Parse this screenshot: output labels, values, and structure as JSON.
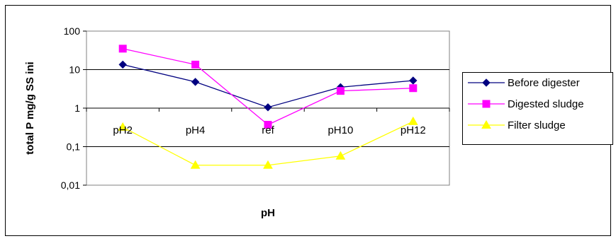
{
  "chart_data": {
    "type": "line",
    "y_scale": "log",
    "ylabel": "total P mg/g SS ini",
    "xlabel": "pH",
    "categories": [
      "pH2",
      "pH4",
      "ref",
      "pH10",
      "pH12"
    ],
    "ylim": [
      0.01,
      100
    ],
    "yticks": [
      100,
      10,
      1,
      0.1,
      0.01
    ],
    "ytick_labels": [
      "100",
      "10",
      "1",
      "0,1",
      "0,01"
    ],
    "grid": true,
    "legend_position": "right",
    "series": [
      {
        "name": "Before digester",
        "color": "#000080",
        "marker": "diamond",
        "values": [
          13.5,
          4.8,
          1.05,
          3.5,
          5.2
        ]
      },
      {
        "name": "Digested sludge",
        "color": "#FF00FF",
        "marker": "square",
        "values": [
          35,
          13.5,
          0.37,
          2.8,
          3.3
        ]
      },
      {
        "name": "Filter sludge",
        "color": "#FFFF00",
        "marker": "triangle",
        "values": [
          0.32,
          0.033,
          0.033,
          0.057,
          0.45
        ]
      }
    ]
  }
}
